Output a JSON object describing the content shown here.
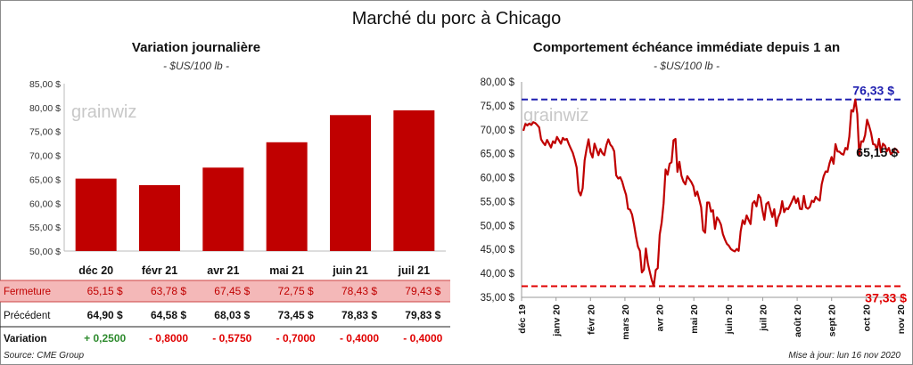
{
  "main_title": "Marché du porc à Chicago",
  "footer": {
    "source": "Source: CME Group",
    "updated": "Mise à jour: lun 16 nov 2020"
  },
  "watermark": "grainwiz",
  "chart_data": [
    {
      "type": "bar",
      "title": "Variation journalière",
      "unit": "- $US/100 lb -",
      "categories": [
        "déc 20",
        "févr 21",
        "avr 21",
        "mai 21",
        "juin 21",
        "juil 21"
      ],
      "values": [
        65.15,
        63.78,
        67.45,
        72.75,
        78.43,
        79.43
      ],
      "ylim": [
        50,
        85
      ],
      "yticks": [
        "50,00 $",
        "55,00 $",
        "60,00 $",
        "65,00 $",
        "70,00 $",
        "75,00 $",
        "80,00 $",
        "85,00 $"
      ],
      "bar_color": "#c00000",
      "table": {
        "rows": [
          {
            "label": "Fermeture",
            "values": [
              "65,15  $",
              "63,78  $",
              "67,45  $",
              "72,75  $",
              "78,43  $",
              "79,43  $"
            ]
          },
          {
            "label": "Précédent",
            "values": [
              "64,90  $",
              "64,58  $",
              "68,03  $",
              "73,45  $",
              "78,83  $",
              "79,83  $"
            ]
          },
          {
            "label": "Variation",
            "values": [
              "+ 0,2500",
              "- 0,8000",
              "- 0,5750",
              "- 0,7000",
              "- 0,4000",
              "- 0,4000"
            ]
          }
        ],
        "highlight_color": "#f4b8b8",
        "positive_color": "#2e8b2e",
        "negative_color": "#e00000"
      }
    },
    {
      "type": "line",
      "title": "Comportement  échéance immédiate depuis 1 an",
      "unit": "- $US/100 lb -",
      "ylim": [
        35,
        80
      ],
      "yticks": [
        "35,00 $",
        "40,00 $",
        "45,00 $",
        "50,00 $",
        "55,00 $",
        "60,00 $",
        "65,00 $",
        "70,00 $",
        "75,00 $",
        "80,00 $"
      ],
      "xticks": [
        "déc 19",
        "janv 20",
        "févr 20",
        "mars 20",
        "avr 20",
        "mai 20",
        "juin 20",
        "juil 20",
        "août 20",
        "sept 20",
        "oct 20",
        "nov 20"
      ],
      "line_color": "#c00000",
      "max": {
        "value": 76.33,
        "label": "76,33 $",
        "color": "#1f1fb0"
      },
      "min": {
        "value": 37.33,
        "label": "37,33 $",
        "color": "#e00000"
      },
      "last": {
        "value": 65.15,
        "label": "65,15 $"
      },
      "series": [
        {
          "values": [
            69.8,
            71.2,
            70.9,
            71.3,
            71.0,
            71.6,
            71.4,
            71.0,
            70.5,
            68.0,
            67.3,
            66.8,
            67.9,
            67.1,
            66.3,
            67.6,
            67.2,
            68.5,
            67.8,
            67.1,
            68.3,
            67.9,
            68.1,
            67.0,
            66.1,
            65.2,
            63.8,
            62.1,
            57.2,
            56.3,
            57.8,
            63.6,
            66.0,
            68.0,
            65.3,
            64.2,
            67.1,
            65.9,
            64.7,
            66.0,
            65.1,
            64.7,
            66.8,
            68.0,
            66.9,
            66.4,
            65.5,
            60.5,
            59.8,
            60.1,
            59.2,
            57.7,
            56.4,
            53.5,
            53.3,
            52.3,
            50.2,
            47.7,
            45.6,
            44.7,
            40.2,
            40.8,
            45.2,
            42.1,
            40.3,
            38.6,
            37.33,
            40.7,
            41.1,
            48.1,
            50.6,
            54.7,
            61.7,
            60.6,
            62.9,
            63.2,
            67.8,
            68.1,
            61.2,
            63.3,
            60.4,
            59.2,
            58.6,
            60.3,
            59.7,
            59.1,
            58.2,
            56.2,
            57.1,
            55.5,
            53.8,
            49.0,
            48.5,
            54.8,
            54.8,
            52.9,
            53.2,
            49.3,
            51.7,
            51.1,
            50.2,
            48.2,
            47.1,
            46.2,
            45.8,
            45.1,
            44.8,
            44.6,
            45.1,
            44.7,
            48.8,
            51.1,
            50.3,
            52.1,
            51.2,
            50.3,
            54.6,
            55.1,
            54.0,
            56.4,
            55.8,
            53.2,
            51.2,
            54.5,
            54.9,
            53.3,
            51.8,
            53.4,
            49.9,
            51.7,
            52.7,
            55.1,
            52.8,
            53.6,
            53.4,
            54.2,
            55.1,
            56.1,
            54.7,
            55.7,
            53.5,
            53.4,
            56.2,
            53.8,
            53.5,
            53.9,
            55.2,
            54.9,
            56.0,
            55.5,
            55.2,
            58.6,
            60.3,
            61.3,
            61.2,
            63.0,
            64.3,
            62.9,
            67.0,
            65.5,
            65.4,
            65.0,
            64.8,
            66.2,
            65.9,
            68.6,
            74.1,
            73.8,
            76.33,
            73.3,
            64.6,
            67.6,
            67.5,
            68.9,
            72.1,
            70.8,
            69.3,
            67.0,
            66.9,
            65.7,
            68.1,
            65.3,
            67.1,
            66.7,
            65.5,
            66.2,
            64.9,
            65.3,
            66.1,
            65.8,
            65.15
          ]
        }
      ]
    }
  ]
}
